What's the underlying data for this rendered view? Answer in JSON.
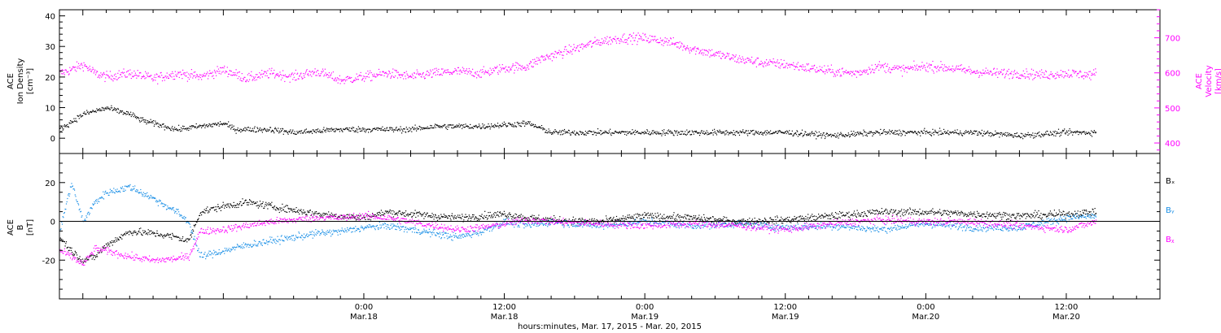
{
  "chart_data": [
    {
      "type": "scatter",
      "panel": "top",
      "ylabel_left_lines": [
        "ACE",
        "Ion Density",
        "[cm⁻³]"
      ],
      "ylabel_right_lines": [
        "ACE",
        "Velocity",
        "[km/s]"
      ],
      "ylim_left": [
        -5,
        42
      ],
      "yticks_left": [
        "40",
        "30",
        "20",
        "10",
        "0"
      ],
      "ylim_right": [
        370,
        780
      ],
      "yticks_right": [
        "700",
        "600",
        "500",
        "400"
      ],
      "x_range_hours": [
        -2,
        92
      ],
      "data_end_hour": 86.5,
      "grid": false,
      "series": [
        {
          "color": "#000000",
          "axis": "left",
          "x": [
            -2,
            0,
            2,
            4,
            5,
            6,
            8,
            10,
            12,
            13,
            14,
            16,
            18,
            22,
            24,
            28,
            30,
            34,
            38,
            40,
            42,
            44,
            48,
            52,
            56,
            60,
            64,
            68,
            72,
            76,
            80,
            84,
            86.5
          ],
          "y": [
            3,
            8,
            10,
            8,
            6,
            5,
            3,
            4,
            5,
            3,
            3,
            3,
            2,
            3,
            3,
            3,
            4,
            4,
            5,
            2,
            2,
            2,
            2,
            2,
            2,
            2,
            1,
            2,
            2,
            2,
            1,
            2,
            2
          ]
        },
        {
          "color": "#ff00ff",
          "axis": "right",
          "x": [
            -2,
            -1,
            0,
            1,
            2,
            4,
            6,
            8,
            10,
            12,
            14,
            16,
            18,
            20,
            22,
            24,
            26,
            28,
            30,
            32,
            34,
            36,
            38,
            39,
            40,
            42,
            44,
            46,
            48,
            50,
            52,
            54,
            56,
            58,
            60,
            62,
            64,
            66,
            68,
            70,
            72,
            74,
            76,
            78,
            80,
            82,
            84,
            86,
            86.5
          ],
          "y": [
            600,
            610,
            625,
            600,
            590,
            600,
            585,
            600,
            590,
            610,
            585,
            600,
            590,
            605,
            580,
            590,
            600,
            590,
            600,
            605,
            600,
            615,
            620,
            640,
            650,
            670,
            690,
            700,
            700,
            690,
            670,
            655,
            640,
            630,
            625,
            615,
            605,
            600,
            620,
            610,
            620,
            615,
            605,
            600,
            600,
            595,
            600,
            595,
            600
          ]
        }
      ]
    },
    {
      "type": "scatter",
      "panel": "bottom",
      "ylabel_left_lines": [
        "ACE",
        "B",
        "[nT]"
      ],
      "ylim": [
        -40,
        35
      ],
      "yticks": [
        "20",
        "0",
        "-20"
      ],
      "x_range_hours": [
        -2,
        92
      ],
      "data_end_hour": 86.5,
      "grid": false,
      "legend": [
        "Bₓ",
        "Bᵧ",
        "Bᵪ"
      ],
      "legend_placement": "right",
      "series": [
        {
          "name": "Bₓ",
          "color": "#000000",
          "x": [
            -2,
            -1,
            0,
            1,
            2,
            4,
            6,
            8,
            9,
            10,
            12,
            14,
            16,
            18,
            20,
            22,
            24,
            26,
            28,
            30,
            32,
            34,
            36,
            38,
            40,
            44,
            48,
            52,
            56,
            60,
            64,
            68,
            72,
            76,
            80,
            84,
            86.5
          ],
          "y": [
            -8,
            -15,
            -20,
            -18,
            -12,
            -5,
            -6,
            -8,
            -10,
            5,
            8,
            10,
            8,
            6,
            4,
            3,
            2,
            5,
            4,
            3,
            2,
            3,
            4,
            2,
            1,
            0,
            3,
            2,
            0,
            1,
            3,
            5,
            5,
            4,
            3,
            4,
            5
          ]
        },
        {
          "name": "Bᵧ",
          "color": "#1a8fe6",
          "x": [
            -2,
            -1,
            0,
            1,
            2,
            4,
            6,
            8,
            9,
            10,
            12,
            14,
            16,
            18,
            20,
            22,
            24,
            26,
            28,
            30,
            32,
            34,
            36,
            38,
            40,
            44,
            48,
            52,
            56,
            60,
            64,
            68,
            72,
            76,
            80,
            84,
            86.5
          ],
          "y": [
            -5,
            20,
            0,
            10,
            15,
            18,
            12,
            5,
            0,
            -18,
            -15,
            -12,
            -10,
            -8,
            -6,
            -5,
            -3,
            -2,
            -4,
            -6,
            -8,
            -5,
            0,
            -2,
            0,
            -2,
            0,
            -2,
            -1,
            -3,
            -2,
            -4,
            -1,
            -3,
            -3,
            2,
            3
          ]
        },
        {
          "name": "Bᵪ",
          "color": "#ff00ff",
          "x": [
            -2,
            -1,
            0,
            1,
            2,
            4,
            6,
            8,
            9,
            10,
            12,
            14,
            16,
            18,
            20,
            22,
            24,
            26,
            28,
            30,
            32,
            34,
            36,
            38,
            40,
            44,
            48,
            52,
            56,
            60,
            64,
            68,
            72,
            76,
            80,
            84,
            86.5
          ],
          "y": [
            -15,
            -18,
            -22,
            -14,
            -15,
            -18,
            -20,
            -19,
            -18,
            -5,
            -4,
            -2,
            0,
            1,
            2,
            2,
            3,
            2,
            0,
            -2,
            -4,
            -3,
            -1,
            1,
            0,
            -1,
            -2,
            -1,
            -2,
            -4,
            -1,
            1,
            0,
            0,
            -2,
            -4,
            0
          ]
        }
      ]
    }
  ],
  "x_axis": {
    "ticks_top_line": [
      "0:00",
      "12:00",
      "0:00",
      "12:00",
      "0:00",
      "12:00"
    ],
    "ticks_bottom_line": [
      "Mar.18",
      "Mar.18",
      "Mar.19",
      "Mar.19",
      "Mar.20",
      "Mar.20"
    ],
    "tick_hours": [
      24,
      36,
      48,
      60,
      72,
      84
    ],
    "label": "hours:minutes, Mar. 17, 2015 - Mar. 20, 2015"
  },
  "colors": {
    "axes": "#000000",
    "density": "#000000",
    "velocity": "#ff00ff",
    "bx": "#000000",
    "by": "#1a8fe6",
    "bz": "#ff00ff"
  }
}
